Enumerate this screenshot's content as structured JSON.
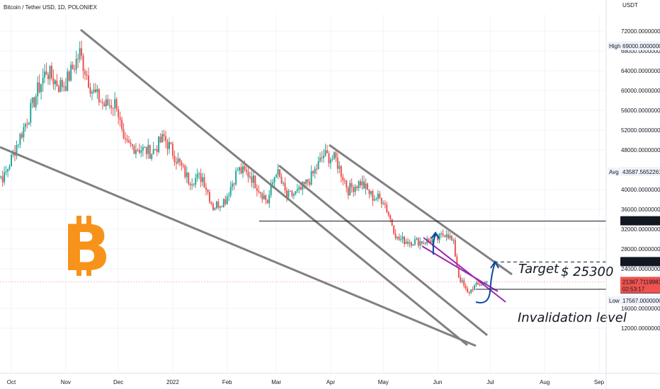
{
  "chart_data": {
    "type": "candlestick",
    "title": "Bitcoin / Tether USD, 1D, POLONIEX",
    "currency": "USDT",
    "ylim": [
      10000,
      72000
    ],
    "y_ticks": [
      12000,
      16000,
      24000,
      28000,
      32000,
      36000,
      40000,
      48000,
      52000,
      56000,
      60000,
      64000,
      68000,
      72000
    ],
    "y_tick_labels": [
      "12000.00000000",
      "16000.00000000",
      "24000.00000000",
      "28000.00000000",
      "32000.00000000",
      "36000.00000000",
      "40000.00000000",
      "48000.00000000",
      "52000.00000000",
      "56000.00000000",
      "60000.00000000",
      "64000.00000000",
      "68000.00000000",
      "72000.00000000"
    ],
    "x_labels": [
      "Oct",
      "Nov",
      "Dec",
      "2022",
      "Feb",
      "Mar",
      "Apr",
      "May",
      "Jun",
      "Jul",
      "Aug",
      "Sep"
    ],
    "x_label_dates": [
      "2021-10-01",
      "2021-11-01",
      "2021-12-01",
      "2022-01-01",
      "2022-02-01",
      "2022-03-01",
      "2022-04-01",
      "2022-05-01",
      "2022-06-01",
      "2022-07-01",
      "2022-08-01",
      "2022-09-01"
    ],
    "price_series": [
      [
        "2021-09-20",
        43000
      ],
      [
        "2021-09-27",
        42500
      ],
      [
        "2021-10-04",
        49000
      ],
      [
        "2021-10-11",
        55000
      ],
      [
        "2021-10-16",
        60000
      ],
      [
        "2021-10-21",
        64000
      ],
      [
        "2021-10-28",
        61000
      ],
      [
        "2021-11-01",
        61500
      ],
      [
        "2021-11-09",
        67500
      ],
      [
        "2021-11-16",
        60000
      ],
      [
        "2021-11-23",
        57000
      ],
      [
        "2021-11-30",
        57500
      ],
      [
        "2021-12-04",
        49000
      ],
      [
        "2021-12-11",
        48500
      ],
      [
        "2021-12-20",
        47500
      ],
      [
        "2021-12-27",
        50500
      ],
      [
        "2022-01-01",
        47500
      ],
      [
        "2022-01-10",
        42000
      ],
      [
        "2022-01-18",
        42500
      ],
      [
        "2022-01-24",
        36500
      ],
      [
        "2022-01-31",
        38000
      ],
      [
        "2022-02-07",
        44000
      ],
      [
        "2022-02-14",
        43000
      ],
      [
        "2022-02-24",
        37500
      ],
      [
        "2022-03-01",
        44000
      ],
      [
        "2022-03-07",
        38500
      ],
      [
        "2022-03-14",
        39500
      ],
      [
        "2022-03-21",
        42500
      ],
      [
        "2022-03-28",
        47000
      ],
      [
        "2022-04-04",
        46000
      ],
      [
        "2022-04-11",
        40000
      ],
      [
        "2022-04-18",
        41500
      ],
      [
        "2022-04-25",
        38500
      ],
      [
        "2022-05-01",
        38000
      ],
      [
        "2022-05-09",
        30000
      ],
      [
        "2022-05-16",
        29500
      ],
      [
        "2022-05-23",
        29500
      ],
      [
        "2022-06-01",
        30000
      ],
      [
        "2022-06-06",
        31500
      ],
      [
        "2022-06-10",
        29000
      ],
      [
        "2022-06-13",
        22500
      ],
      [
        "2022-06-18",
        19000
      ],
      [
        "2022-06-22",
        20500
      ],
      [
        "2022-06-27",
        21000
      ],
      [
        "2022-06-29",
        21368
      ]
    ],
    "horizontal_levels": [
      {
        "value": 33629.37589317,
        "label": "33629.37589317"
      },
      {
        "value": 25378.3023765,
        "label": "25378.30237650"
      },
      {
        "value": 19858.2456875,
        "label": "19858.24568750"
      }
    ],
    "stats": {
      "high_label": "High",
      "high_value": "69000.00000000",
      "avg_label": "Avg",
      "avg_value": "43587.56522617",
      "low_label": "Low",
      "low_value": "17567.00000000",
      "last_price": "21367.71199831",
      "countdown": "02:53:17"
    },
    "annotations": {
      "target": "Target",
      "target_price": "$ 25300",
      "invalidation": "Invalidation level"
    },
    "colors": {
      "up": "#26a69a",
      "down": "#ef5350",
      "channel": "#808080",
      "inner_channel": "#9c27b0",
      "arrow": "#0d47a1",
      "bitcoin": "#f7931a",
      "last_price_bg": "#ef5350",
      "level_bg": "#131722"
    }
  }
}
